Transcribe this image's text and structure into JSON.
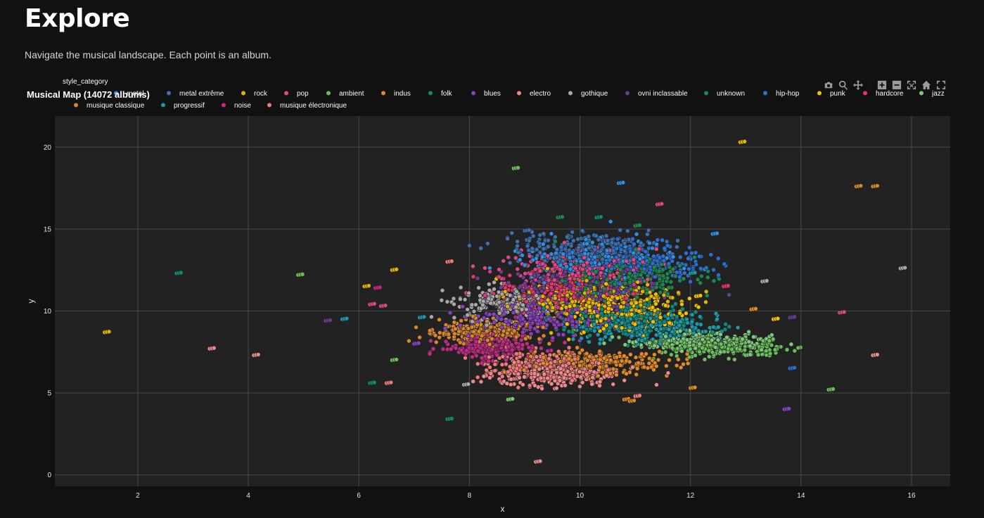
{
  "page": {
    "title": "Explore",
    "subtitle": "Navigate the musical landscape. Each point is an album."
  },
  "modebar": [
    {
      "icon": "camera-icon",
      "title": "Download plot as a png"
    },
    {
      "icon": "zoom-icon",
      "title": "Zoom"
    },
    {
      "icon": "pan-icon",
      "title": "Pan"
    },
    {
      "icon": "zoom-in-icon",
      "title": "Zoom in"
    },
    {
      "icon": "zoom-out-icon",
      "title": "Zoom out"
    },
    {
      "icon": "autoscale-icon",
      "title": "Autoscale"
    },
    {
      "icon": "home-icon",
      "title": "Reset axes"
    },
    {
      "icon": "fullscreen-icon",
      "title": "Fullscreen"
    }
  ],
  "chart_data": {
    "type": "scatter",
    "title": "Musical Map (14072 albums)",
    "legend_title": "style_category",
    "legend_position": "top",
    "xlabel": "x",
    "ylabel": "y",
    "xlim": [
      0.5,
      16.7
    ],
    "ylim": [
      -0.7,
      21.9
    ],
    "xticks": [
      2,
      4,
      6,
      8,
      10,
      12,
      14,
      16
    ],
    "yticks": [
      0,
      5,
      10,
      15,
      20
    ],
    "grid": true,
    "series": [
      {
        "name": "metal",
        "color": "#2E91E5",
        "center": [
          10.3,
          13.2
        ],
        "spread": [
          1.0,
          0.9
        ],
        "outliers": [
          [
            10.7,
            17.8
          ],
          [
            12.4,
            14.7
          ]
        ]
      },
      {
        "name": "metal extrême",
        "color": "#3e6fb0",
        "center": [
          10.1,
          13.8
        ],
        "spread": [
          1.0,
          0.7
        ],
        "outliers": [
          [
            9.0,
            14.9
          ]
        ]
      },
      {
        "name": "rock",
        "color": "#e0b400",
        "center": [
          10.2,
          10.8
        ],
        "spread": [
          1.0,
          0.9
        ],
        "outliers": [
          [
            12.9,
            20.3
          ],
          [
            6.6,
            12.5
          ],
          [
            6.1,
            11.5
          ],
          [
            1.4,
            8.7
          ]
        ]
      },
      {
        "name": "pop",
        "color": "#e0468a",
        "center": [
          9.9,
          12.6
        ],
        "spread": [
          0.9,
          0.8
        ],
        "outliers": [
          [
            14.7,
            9.9
          ],
          [
            6.2,
            10.4
          ],
          [
            11.4,
            16.5
          ],
          [
            6.4,
            10.3
          ]
        ]
      },
      {
        "name": "ambient",
        "color": "#6abf5a",
        "center": [
          12.6,
          7.8
        ],
        "spread": [
          0.8,
          0.4
        ],
        "outliers": [
          [
            8.8,
            18.7
          ],
          [
            14.5,
            5.2
          ],
          [
            4.9,
            12.2
          ],
          [
            6.6,
            7.0
          ]
        ]
      },
      {
        "name": "indus",
        "color": "#e38a24",
        "center": [
          10.3,
          6.9
        ],
        "spread": [
          1.0,
          0.5
        ],
        "outliers": [
          [
            12.0,
            5.3
          ],
          [
            10.8,
            4.6
          ],
          [
            13.1,
            10.1
          ]
        ]
      },
      {
        "name": "folk",
        "color": "#0e8a7a",
        "center": [
          10.8,
          9.4
        ],
        "spread": [
          1.0,
          0.7
        ],
        "outliers": [
          [
            7.6,
            3.4
          ],
          [
            6.2,
            5.6
          ],
          [
            2.7,
            12.3
          ],
          [
            10.3,
            15.7
          ]
        ]
      },
      {
        "name": "blues",
        "color": "#8a3fbf",
        "center": [
          9.3,
          9.6
        ],
        "spread": [
          0.9,
          0.8
        ],
        "outliers": [
          [
            13.7,
            4.0
          ],
          [
            7.0,
            8.0
          ]
        ]
      },
      {
        "name": "electro",
        "color": "#f08a8a",
        "center": [
          9.6,
          6.1
        ],
        "spread": [
          0.8,
          0.5
        ],
        "outliers": [
          [
            9.2,
            0.8
          ],
          [
            3.3,
            7.7
          ],
          [
            4.1,
            7.3
          ],
          [
            15.3,
            7.3
          ]
        ]
      },
      {
        "name": "gothique",
        "color": "#a8a8a8",
        "center": [
          8.7,
          10.5
        ],
        "spread": [
          0.7,
          0.7
        ],
        "outliers": [
          [
            15.8,
            12.6
          ],
          [
            13.3,
            11.8
          ],
          [
            7.9,
            5.5
          ]
        ]
      },
      {
        "name": "ovni inclassable",
        "color": "#6a3d8f",
        "center": [
          10.0,
          11.5
        ],
        "spread": [
          0.9,
          0.8
        ],
        "outliers": [
          [
            5.4,
            9.4
          ],
          [
            13.8,
            9.6
          ]
        ]
      },
      {
        "name": "unknown",
        "color": "#1a8a4f",
        "center": [
          10.8,
          12.0
        ],
        "spread": [
          0.9,
          0.9
        ],
        "outliers": [
          [
            9.6,
            15.7
          ],
          [
            11.0,
            15.2
          ]
        ]
      },
      {
        "name": "hip-hop",
        "color": "#2a6fd6",
        "center": [
          11.0,
          13.0
        ],
        "spread": [
          0.9,
          0.8
        ],
        "outliers": [
          [
            13.8,
            6.5
          ]
        ]
      },
      {
        "name": "punk",
        "color": "#f5c000",
        "center": [
          10.6,
          10.0
        ],
        "spread": [
          1.0,
          0.9
        ],
        "outliers": [
          [
            12.1,
            10.9
          ],
          [
            13.5,
            9.5
          ]
        ]
      },
      {
        "name": "hardcore",
        "color": "#e8356d",
        "center": [
          9.7,
          11.2
        ],
        "spread": [
          0.9,
          0.8
        ],
        "outliers": [
          [
            12.6,
            11.5
          ]
        ]
      },
      {
        "name": "jazz",
        "color": "#7dc97d",
        "center": [
          12.1,
          8.2
        ],
        "spread": [
          0.9,
          0.4
        ],
        "outliers": [
          [
            13.0,
            7.3
          ],
          [
            8.7,
            4.6
          ]
        ]
      },
      {
        "name": "musique classique",
        "color": "#d9872b",
        "center": [
          8.3,
          8.7
        ],
        "spread": [
          0.6,
          0.5
        ],
        "outliers": [
          [
            15.0,
            17.6
          ],
          [
            15.3,
            17.6
          ],
          [
            10.9,
            4.5
          ]
        ]
      },
      {
        "name": "progressif",
        "color": "#1a9aaa",
        "center": [
          11.2,
          9.0
        ],
        "spread": [
          0.9,
          0.6
        ],
        "outliers": [
          [
            7.1,
            9.6
          ],
          [
            5.7,
            9.5
          ],
          [
            12.0,
            12.3
          ]
        ]
      },
      {
        "name": "noise",
        "color": "#c42a83",
        "center": [
          8.4,
          7.8
        ],
        "spread": [
          0.6,
          0.5
        ],
        "outliers": [
          [
            6.3,
            11.4
          ]
        ]
      },
      {
        "name": "musique électronique",
        "color": "#f07a7a",
        "center": [
          9.4,
          6.6
        ],
        "spread": [
          0.7,
          0.6
        ],
        "outliers": [
          [
            6.5,
            5.6
          ],
          [
            7.6,
            13.0
          ],
          [
            11.0,
            4.8
          ]
        ]
      }
    ]
  }
}
